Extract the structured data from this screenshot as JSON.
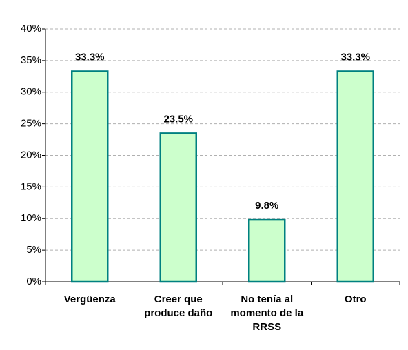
{
  "chart_data": {
    "type": "bar",
    "categories": [
      "Vergüenza",
      "Creer que produce daño",
      "No tenía al momento de la RRSS",
      "Otro"
    ],
    "values": [
      33.3,
      23.5,
      9.8,
      33.3
    ],
    "value_labels": [
      "33.3%",
      "23.5%",
      "9.8%",
      "33.3%"
    ],
    "color": "#ccffcc",
    "edge_color": "#008080",
    "ylim": [
      0,
      40
    ],
    "yticks": [
      {
        "value": 0,
        "label": "0%"
      },
      {
        "value": 5,
        "label": "5%"
      },
      {
        "value": 10,
        "label": "10%"
      },
      {
        "value": 15,
        "label": "15%"
      },
      {
        "value": 20,
        "label": "20%"
      },
      {
        "value": 25,
        "label": "25%"
      },
      {
        "value": 30,
        "label": "30%"
      },
      {
        "value": 35,
        "label": "35%"
      },
      {
        "value": 40,
        "label": "40%"
      }
    ],
    "grid": true
  }
}
